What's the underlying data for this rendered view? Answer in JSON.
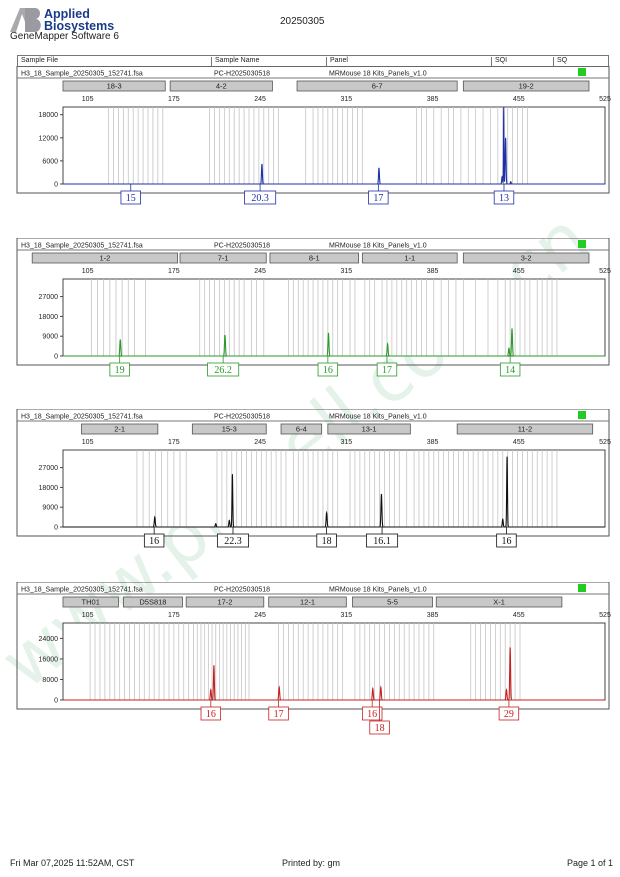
{
  "header": {
    "logo_text_1": "Applied",
    "logo_text_2": "Biosystems",
    "title": "20250305",
    "software": "GeneMapper Software 6"
  },
  "columns": {
    "sample_file": "Sample File",
    "sample_name": "Sample Name",
    "panel": "Panel",
    "sqi": "SQI",
    "sq": "SQ"
  },
  "colors": {
    "blue": "#1f2fa8",
    "green": "#2a9a2a",
    "black": "#111111",
    "red": "#c82020",
    "status_green": "#22cc22",
    "bin_fill": "#c8c8c8",
    "watermark": "#cfe9d8"
  },
  "watermark": "www.procell.com.cn",
  "footer": {
    "date": "Fri Mar 07,2025 11:52AM, CST",
    "printed_by": "Printed by: gm",
    "page": "Page 1 of 1"
  },
  "chart_data": [
    {
      "type": "line",
      "dye": "blue",
      "file": "H3_18_Sample_20250305_152741.fsa",
      "sample": "PC-H2025030518",
      "panel": "MRMouse 18 Kits_Panels_v1.0",
      "xlim": [
        85,
        525
      ],
      "xticks": [
        105,
        175,
        245,
        315,
        385,
        455,
        525
      ],
      "ylim": [
        0,
        20000
      ],
      "yticks": [
        0,
        6000,
        12000,
        18000
      ],
      "markers": [
        {
          "name": "18-3",
          "range": [
            85,
            168
          ]
        },
        {
          "name": "4-2",
          "range": [
            172,
            255
          ]
        },
        {
          "name": "6-7",
          "range": [
            275,
            405
          ]
        },
        {
          "name": "19-2",
          "range": [
            410,
            512
          ]
        }
      ],
      "bins": [
        122,
        126,
        130,
        134,
        138,
        142,
        146,
        150,
        154,
        158,
        162,
        166,
        204,
        208,
        212,
        216,
        220,
        224,
        228,
        232,
        236,
        240,
        244,
        248,
        252,
        256,
        260,
        282,
        288,
        292,
        296,
        300,
        304,
        308,
        312,
        316,
        320,
        324,
        328,
        372,
        376,
        380,
        386,
        392,
        398,
        402,
        408,
        414,
        420,
        426,
        432,
        438,
        442,
        446,
        450,
        454,
        458,
        462
      ],
      "peaks": [
        {
          "x": 246.5,
          "height": 5200,
          "width": 0.9
        },
        {
          "x": 341.5,
          "height": 4200,
          "width": 0.9
        },
        {
          "x": 441.5,
          "height": 1900,
          "width": 0.9
        },
        {
          "x": 442.8,
          "height": 20000,
          "width": 0.5
        },
        {
          "x": 444.3,
          "height": 12000,
          "width": 0.9
        },
        {
          "x": 448.5,
          "height": 600,
          "width": 0.9
        }
      ],
      "alleles": [
        {
          "label": "15",
          "x": 140
        },
        {
          "label": "20.3",
          "x": 245
        },
        {
          "label": "17",
          "x": 341
        },
        {
          "label": "13",
          "x": 443
        }
      ]
    },
    {
      "type": "line",
      "dye": "green",
      "file": "H3_18_Sample_20250305_152741.fsa",
      "sample": "PC-H2025030518",
      "panel": "MRMouse 18 Kits_Panels_v1.0",
      "xlim": [
        85,
        525
      ],
      "xticks": [
        105,
        175,
        245,
        315,
        385,
        455,
        525
      ],
      "ylim": [
        0,
        35000
      ],
      "yticks": [
        0,
        9000,
        18000,
        27000
      ],
      "markers": [
        {
          "name": "1-2",
          "range": [
            60,
            178
          ]
        },
        {
          "name": "7-1",
          "range": [
            180,
            250
          ]
        },
        {
          "name": "8-1",
          "range": [
            253,
            325
          ]
        },
        {
          "name": "1-1",
          "range": [
            328,
            405
          ]
        },
        {
          "name": "3-2",
          "range": [
            410,
            512
          ]
        }
      ],
      "bins": [
        108,
        113,
        118,
        123,
        128,
        133,
        138,
        143,
        152,
        196,
        200,
        204,
        208,
        212,
        216,
        220,
        224,
        228,
        232,
        238,
        242,
        248,
        268,
        272,
        276,
        280,
        284,
        288,
        292,
        296,
        300,
        304,
        308,
        312,
        318,
        322,
        330,
        334,
        338,
        344,
        348,
        352,
        356,
        360,
        364,
        368,
        372,
        376,
        380,
        386,
        392,
        398,
        404,
        410,
        420,
        430,
        438,
        444,
        448,
        452,
        456,
        460,
        464,
        470,
        474,
        478,
        482,
        486
      ],
      "peaks": [
        {
          "x": 131.5,
          "height": 7500,
          "width": 1.0
        },
        {
          "x": 216.5,
          "height": 9500,
          "width": 1.0
        },
        {
          "x": 300.5,
          "height": 10500,
          "width": 1.0
        },
        {
          "x": 348.5,
          "height": 5500,
          "width": 1.0
        },
        {
          "x": 447.0,
          "height": 3500,
          "width": 1.0
        },
        {
          "x": 449.5,
          "height": 12500,
          "width": 1.0
        }
      ],
      "alleles": [
        {
          "label": "19",
          "x": 131
        },
        {
          "label": "26.2",
          "x": 215
        },
        {
          "label": "16",
          "x": 300
        },
        {
          "label": "17",
          "x": 348
        },
        {
          "label": "14",
          "x": 448
        }
      ]
    },
    {
      "type": "line",
      "dye": "black",
      "file": "H3_18_Sample_20250305_152741.fsa",
      "sample": "PC-H2025030518",
      "panel": "MRMouse 18 Kits_Panels_v1.0",
      "xlim": [
        85,
        525
      ],
      "xticks": [
        105,
        175,
        245,
        315,
        385,
        455,
        525
      ],
      "ylim": [
        0,
        35000
      ],
      "yticks": [
        0,
        9000,
        18000,
        27000
      ],
      "markers": [
        {
          "name": "2-1",
          "range": [
            100,
            162
          ]
        },
        {
          "name": "15-3",
          "range": [
            190,
            250
          ]
        },
        {
          "name": "6-4",
          "range": [
            262,
            295
          ]
        },
        {
          "name": "13-1",
          "range": [
            300,
            367
          ]
        },
        {
          "name": "11-2",
          "range": [
            405,
            515
          ]
        }
      ],
      "bins": [
        145,
        150,
        155,
        160,
        165,
        170,
        175,
        180,
        185,
        210,
        214,
        218,
        222,
        226,
        230,
        234,
        238,
        242,
        246,
        250,
        254,
        258,
        262,
        266,
        272,
        276,
        280,
        284,
        288,
        292,
        296,
        300,
        304,
        308,
        318,
        322,
        326,
        330,
        334,
        338,
        342,
        346,
        350,
        354,
        358,
        364,
        370,
        374,
        378,
        382,
        386,
        390,
        394,
        398,
        402,
        406,
        410,
        414,
        418,
        422,
        426,
        430,
        434,
        438,
        442,
        446,
        450,
        454,
        458,
        462,
        466,
        470,
        474,
        478,
        482,
        486
      ],
      "peaks": [
        {
          "x": 159.5,
          "height": 4500,
          "width": 1.0
        },
        {
          "x": 209.0,
          "height": 1500,
          "width": 1.0
        },
        {
          "x": 220.0,
          "height": 3000,
          "width": 1.0
        },
        {
          "x": 222.5,
          "height": 24000,
          "width": 0.8
        },
        {
          "x": 299.0,
          "height": 6500,
          "width": 1.0
        },
        {
          "x": 343.5,
          "height": 15000,
          "width": 1.0
        },
        {
          "x": 442.0,
          "height": 3500,
          "width": 1.0
        },
        {
          "x": 445.5,
          "height": 32000,
          "width": 0.8
        }
      ],
      "alleles": [
        {
          "label": "16",
          "x": 159
        },
        {
          "label": "22.3",
          "x": 223
        },
        {
          "label": "18",
          "x": 299
        },
        {
          "label": "16.1",
          "x": 344
        },
        {
          "label": "16",
          "x": 445
        }
      ]
    },
    {
      "type": "line",
      "dye": "red",
      "file": "H3_18_Sample_20250305_152741.fsa",
      "sample": "PC-H2025030518",
      "panel": "MRMouse 18 Kits_Panels_v1.0",
      "xlim": [
        85,
        525
      ],
      "xticks": [
        105,
        175,
        245,
        315,
        385,
        455,
        525
      ],
      "ylim": [
        0,
        30000
      ],
      "yticks": [
        0,
        8000,
        16000,
        24000
      ],
      "markers": [
        {
          "name": "TH01",
          "range": [
            85,
            130
          ]
        },
        {
          "name": "D5S818",
          "range": [
            134,
            182
          ]
        },
        {
          "name": "17-2",
          "range": [
            185,
            248
          ]
        },
        {
          "name": "12-1",
          "range": [
            252,
            315
          ]
        },
        {
          "name": "5-5",
          "range": [
            320,
            385
          ]
        },
        {
          "name": "X-1",
          "range": [
            388,
            490
          ]
        }
      ],
      "bins": [
        107,
        111,
        115,
        119,
        123,
        127,
        131,
        135,
        139,
        143,
        147,
        151,
        155,
        159,
        163,
        167,
        171,
        175,
        179,
        183,
        187,
        191,
        194,
        197,
        200,
        203,
        206,
        209,
        212,
        215,
        218,
        221,
        224,
        227,
        230,
        233,
        236,
        260,
        264,
        268,
        272,
        276,
        280,
        284,
        288,
        292,
        296,
        300,
        304,
        308,
        312,
        322,
        326,
        330,
        334,
        338,
        342,
        346,
        350,
        354,
        358,
        362,
        366,
        370,
        374,
        378,
        382,
        386,
        416,
        420,
        424,
        428,
        432,
        436,
        440,
        444,
        448,
        452,
        456
      ],
      "peaks": [
        {
          "x": 205.0,
          "height": 4000,
          "width": 1.0
        },
        {
          "x": 207.5,
          "height": 13500,
          "width": 0.9
        },
        {
          "x": 260.5,
          "height": 5000,
          "width": 1.0
        },
        {
          "x": 336.5,
          "height": 4500,
          "width": 1.0
        },
        {
          "x": 343.0,
          "height": 5000,
          "width": 1.0
        },
        {
          "x": 445.0,
          "height": 4000,
          "width": 1.0
        },
        {
          "x": 448.0,
          "height": 20500,
          "width": 0.9
        }
      ],
      "alleles": [
        {
          "label": "16",
          "x": 205,
          "row": 0
        },
        {
          "label": "17",
          "x": 260,
          "row": 0
        },
        {
          "label": "16",
          "x": 336,
          "row": 0
        },
        {
          "label": "18",
          "x": 342,
          "row": 1
        },
        {
          "label": "29",
          "x": 447,
          "row": 0
        }
      ]
    }
  ]
}
